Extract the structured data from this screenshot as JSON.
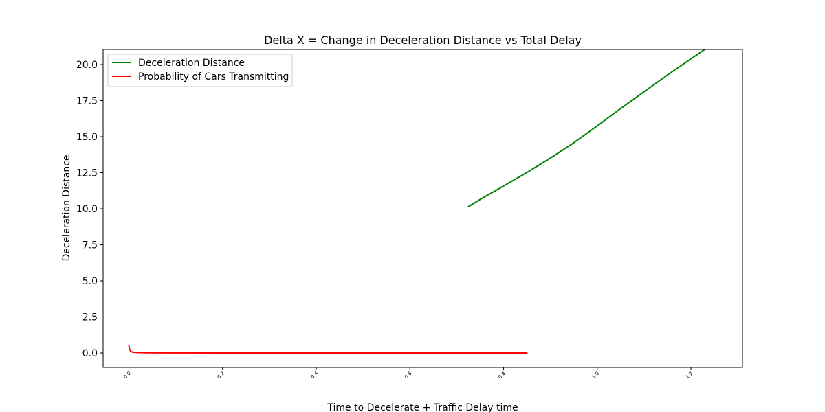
{
  "chart_data": {
    "type": "line",
    "title": "Delta X = Change in Deceleration Distance vs Total Delay",
    "xlabel": "Time to Decelerate + Traffic Delay time",
    "ylabel": "Deceleration Distance",
    "xlim": [
      -0.055,
      1.31
    ],
    "ylim": [
      -1.0,
      21.05
    ],
    "x_ticks": [
      0.0,
      0.2,
      0.4,
      0.6,
      0.8,
      1.0,
      1.2
    ],
    "x_tick_labels": [
      "0.0",
      "0.2",
      "0.4",
      "0.6",
      "0.8",
      "1.0",
      "1.2"
    ],
    "y_ticks": [
      0.0,
      2.5,
      5.0,
      7.5,
      10.0,
      12.5,
      15.0,
      17.5,
      20.0
    ],
    "y_tick_labels": [
      "0.0",
      "2.5",
      "5.0",
      "7.5",
      "10.0",
      "12.5",
      "15.0",
      "17.5",
      "20.0"
    ],
    "grid": false,
    "legend_position": "top-left",
    "series": [
      {
        "name": "Deceleration Distance",
        "color": "#008000",
        "x": [
          0.725,
          0.75,
          0.8,
          0.85,
          0.9,
          0.95,
          1.0,
          1.05,
          1.1,
          1.15,
          1.2,
          1.25
        ],
        "y": [
          10.15,
          10.65,
          11.58,
          12.52,
          13.52,
          14.58,
          15.75,
          16.95,
          18.12,
          19.28,
          20.4,
          21.5
        ]
      },
      {
        "name": "Probability of Cars Transmitting",
        "color": "#ff0000",
        "x": [
          0.0,
          0.001,
          0.002,
          0.003,
          0.005,
          0.008,
          0.012,
          0.02,
          0.04,
          0.08,
          0.2,
          0.4,
          0.6,
          0.8,
          0.85
        ],
        "y": [
          0.52,
          0.34,
          0.22,
          0.15,
          0.09,
          0.06,
          0.04,
          0.025,
          0.012,
          0.006,
          0.002,
          0.001,
          0.0005,
          0.0002,
          0.0
        ]
      }
    ]
  }
}
